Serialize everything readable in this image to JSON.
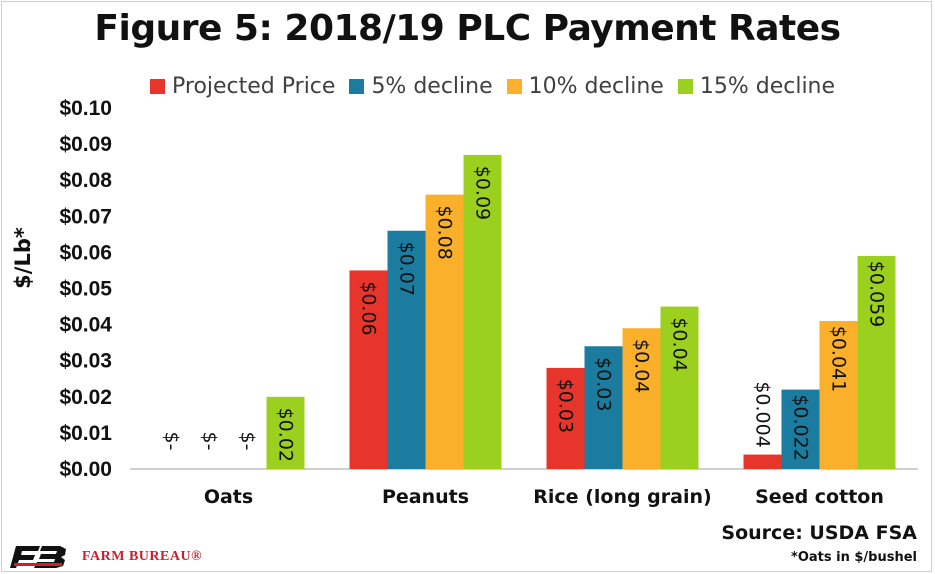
{
  "chart_data": {
    "type": "bar",
    "title": "Figure 5: 2018/19 PLC Payment Rates",
    "ylabel": "$/Lb*",
    "xlabel": "",
    "ylim": [
      0,
      0.1
    ],
    "yticks": [
      "$0.00",
      "$0.01",
      "$0.02",
      "$0.03",
      "$0.04",
      "$0.05",
      "$0.06",
      "$0.07",
      "$0.08",
      "$0.09",
      "$0.10"
    ],
    "categories": [
      "Oats",
      "Peanuts",
      "Rice (long grain)",
      "Seed cotton"
    ],
    "grid": false,
    "legend": "top",
    "series": [
      {
        "name": "Projected Price",
        "color": "#e8352b",
        "values": [
          0,
          0.055,
          0.028,
          0.004
        ],
        "labels": [
          "$-",
          "$0.06",
          "$0.03",
          "$0.004"
        ]
      },
      {
        "name": "5% decline",
        "color": "#1b7ca0",
        "values": [
          0,
          0.066,
          0.034,
          0.022
        ],
        "labels": [
          "$-",
          "$0.07",
          "$0.03",
          "$0.022"
        ]
      },
      {
        "name": "10% decline",
        "color": "#fbb02b",
        "values": [
          0,
          0.076,
          0.039,
          0.041
        ],
        "labels": [
          "$-",
          "$0.08",
          "$0.04",
          "$0.041"
        ]
      },
      {
        "name": "15% decline",
        "color": "#9bd11e",
        "values": [
          0.02,
          0.087,
          0.045,
          0.059
        ],
        "labels": [
          "$0.02",
          "$0.09",
          "$0.04",
          "$0.059"
        ]
      }
    ]
  },
  "source": "Source: USDA FSA",
  "footnote": "*Oats in $/bushel",
  "logo": {
    "text": "FARM BUREAU®",
    "icon": "farm-bureau-logo-icon",
    "color": "#c8202f"
  }
}
